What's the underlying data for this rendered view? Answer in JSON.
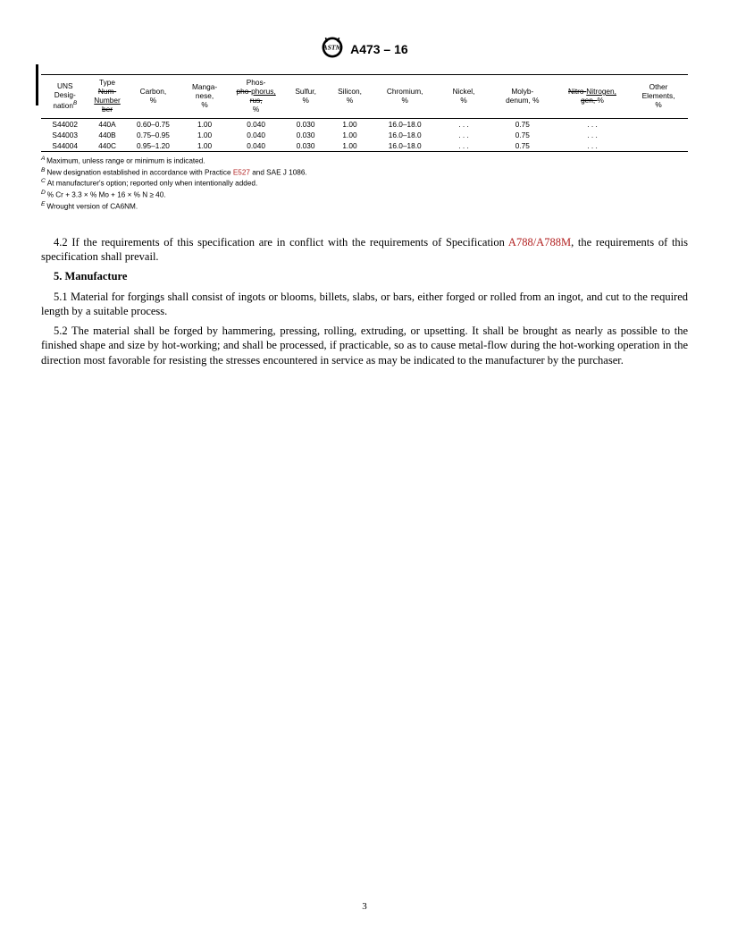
{
  "header": {
    "doc_id": "A473 – 16"
  },
  "table": {
    "columns": [
      {
        "key": "uns",
        "html": "UNS<br>Desig-<br>nation<span class='sup'>B</span>",
        "width": "6.5%"
      },
      {
        "key": "type",
        "html": "Type<br><span class='st'>Num-</span><br><span class='u'>Number</span><br><span class='st'>ber</span>",
        "width": "5%"
      },
      {
        "key": "carbon",
        "html": "Carbon,<br>%",
        "width": "7.5%"
      },
      {
        "key": "mn",
        "html": "Manga-<br>nese,<br>%",
        "width": "6.5%"
      },
      {
        "key": "p",
        "html": "Phos-<br><span class='st'>pho-</span><span class='u'>phorus,</span><br><span class='st'>rus,</span><br>%",
        "width": "7.5%"
      },
      {
        "key": "s",
        "html": "Sulfur,<br>%",
        "width": "6%"
      },
      {
        "key": "si",
        "html": "Silicon,<br>%",
        "width": "6%"
      },
      {
        "key": "cr",
        "html": "Chromium,<br>%",
        "width": "9%"
      },
      {
        "key": "ni",
        "html": "Nickel,<br>%",
        "width": "7%"
      },
      {
        "key": "mo",
        "html": "Molyb-<br>denum, %",
        "width": "9%"
      },
      {
        "key": "n",
        "html": "<span class='st'>Nitro-</span><span class='u'>Nitrogen,</span><br><span class='st'>gen,&nbsp;</span>%",
        "width": "10%"
      },
      {
        "key": "other",
        "html": "Other<br>Elements,<br>%",
        "width": "8%"
      }
    ],
    "rows": [
      [
        "S44002",
        "440A",
        "0.60–0.75",
        "1.00",
        "0.040",
        "0.030",
        "1.00",
        "16.0–18.0",
        ". . .",
        "0.75",
        ". . .",
        ""
      ],
      [
        "S44003",
        "440B",
        "0.75–0.95",
        "1.00",
        "0.040",
        "0.030",
        "1.00",
        "16.0–18.0",
        ". . .",
        "0.75",
        ". . .",
        ""
      ],
      [
        "S44004",
        "440C",
        "0.95–1.20",
        "1.00",
        "0.040",
        "0.030",
        "1.00",
        "16.0–18.0",
        ". . .",
        "0.75",
        ". . .",
        ""
      ]
    ]
  },
  "notes": {
    "A": "Maximum, unless range or minimum is indicated.",
    "B_pre": "New designation established in accordance with Practice ",
    "B_ref": "E527",
    "B_post": " and SAE J 1086.",
    "C": "At manufacturer's option; reported only when intentionally added.",
    "D": "% Cr + 3.3 × % Mo + 16 × % N ≥ 40.",
    "E": "Wrought version of CA6NM."
  },
  "body": {
    "p42_pre": "4.2 If the requirements of this specification are in conflict with the requirements of Specification ",
    "p42_ref": "A788/A788M",
    "p42_post": ", the requirements of this specification shall prevail.",
    "sec5_head": "5. Manufacture",
    "p51": "5.1 Material for forgings shall consist of ingots or blooms, billets, slabs, or bars, either forged or rolled from an ingot, and cut to the required length by a suitable process.",
    "p52": "5.2 The material shall be forged by hammering, pressing, rolling, extruding, or upsetting. It shall be brought as nearly as possible to the finished shape and size by hot-working; and shall be processed, if practicable, so as to cause metal-flow during the hot-working operation in the direction most favorable for resisting the stresses encountered in service as may be indicated to the manufacturer by the purchaser."
  },
  "page_number": "3"
}
